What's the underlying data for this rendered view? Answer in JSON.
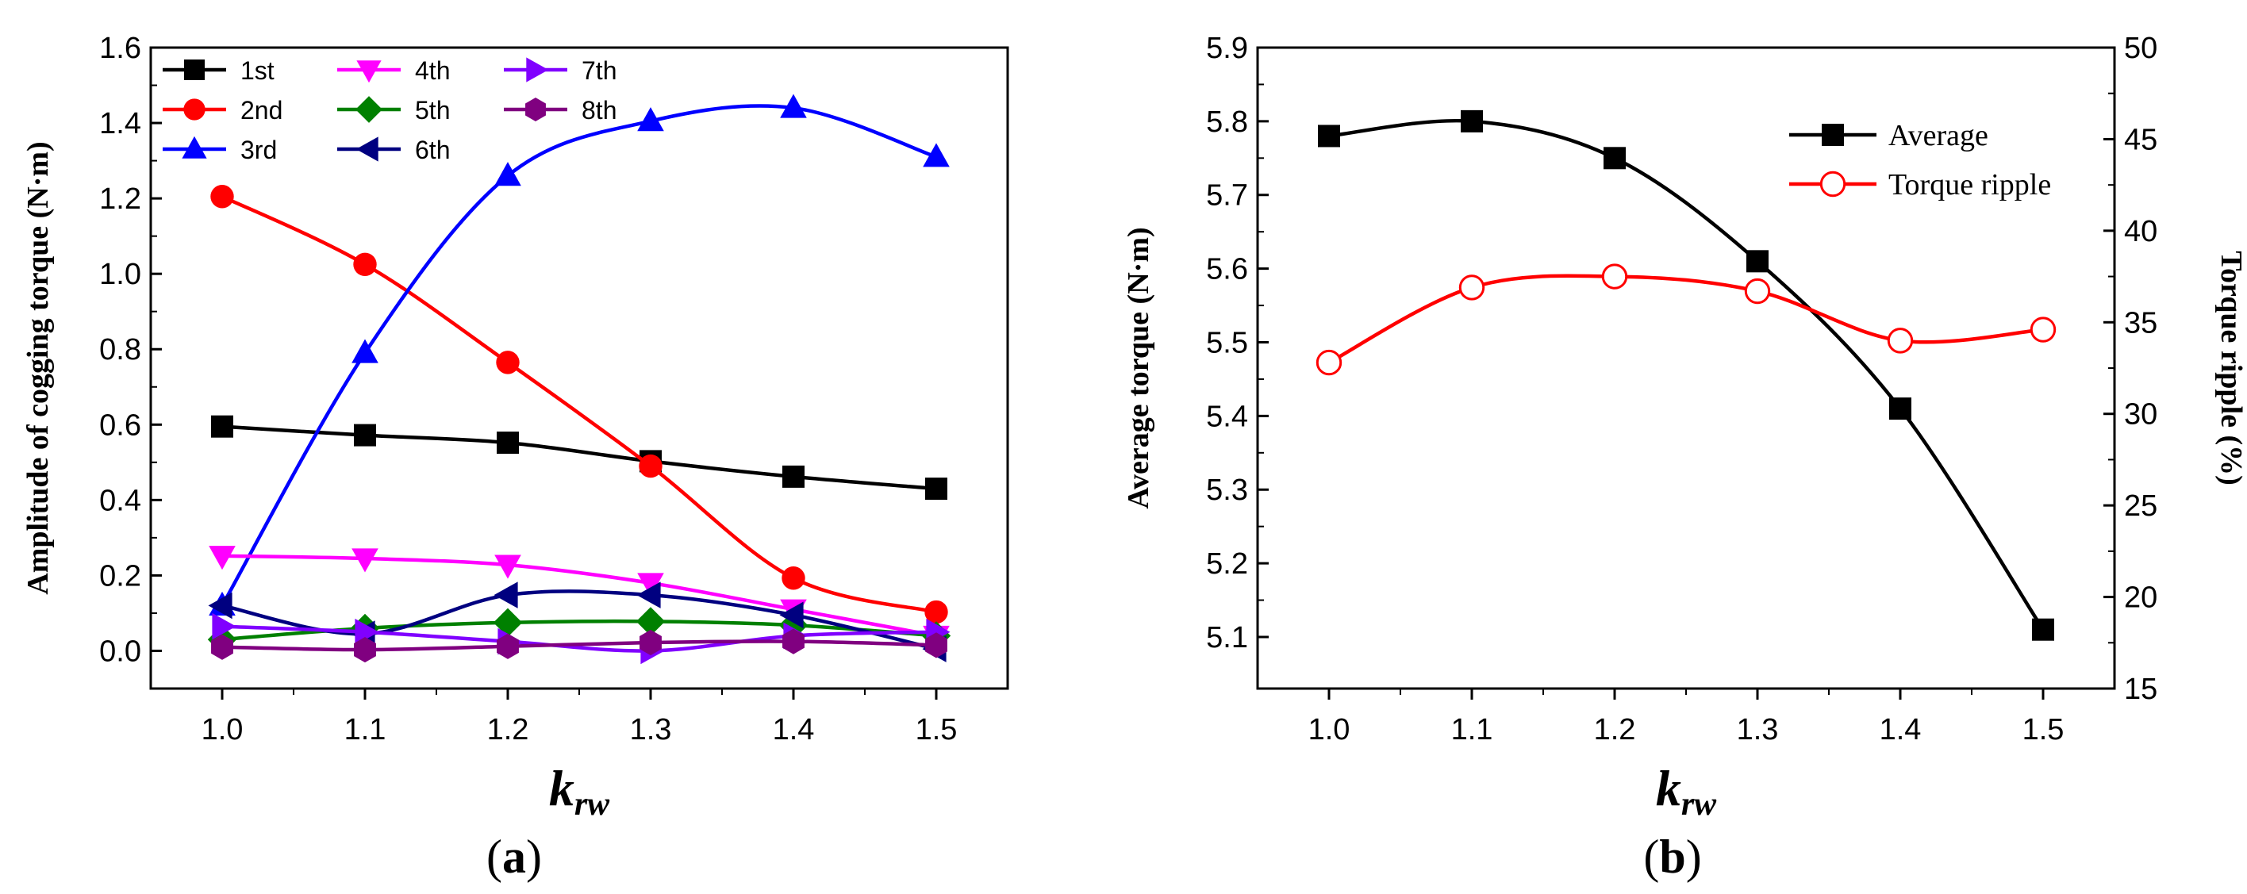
{
  "chart_data": [
    {
      "type": "line",
      "panel_label": "a",
      "xlabel_main": "k",
      "xlabel_sub": "rw",
      "ylabel": "Amplitude of cogging torque (N·m)",
      "x": [
        1.0,
        1.1,
        1.2,
        1.3,
        1.4,
        1.5
      ],
      "x_tick_labels": [
        "1.0",
        "1.1",
        "1.2",
        "1.3",
        "1.4",
        "1.5"
      ],
      "xlim": [
        0.95,
        1.55
      ],
      "ylim": [
        -0.1,
        1.6
      ],
      "y_ticks": [
        0.0,
        0.2,
        0.4,
        0.6,
        0.8,
        1.0,
        1.2,
        1.4,
        1.6
      ],
      "y_tick_labels": [
        "0.0",
        "0.2",
        "0.4",
        "0.6",
        "0.8",
        "1.0",
        "1.2",
        "1.4",
        "1.6"
      ],
      "legend_position": "top-left",
      "series": [
        {
          "name": "1st",
          "color": "#000000",
          "marker": "square",
          "values": [
            0.595,
            0.572,
            0.552,
            0.503,
            0.462,
            0.43
          ]
        },
        {
          "name": "2nd",
          "color": "#ff0000",
          "marker": "circle",
          "values": [
            1.205,
            1.025,
            0.765,
            0.49,
            0.193,
            0.103
          ]
        },
        {
          "name": "3rd",
          "color": "#0000ff",
          "marker": "triangle-up",
          "values": [
            0.12,
            0.79,
            1.26,
            1.405,
            1.44,
            1.31
          ]
        },
        {
          "name": "4th",
          "color": "#ff00ff",
          "marker": "triangle-down",
          "values": [
            0.252,
            0.245,
            0.228,
            0.18,
            0.11,
            0.04
          ]
        },
        {
          "name": "5th",
          "color": "#008000",
          "marker": "diamond",
          "values": [
            0.03,
            0.06,
            0.075,
            0.078,
            0.068,
            0.04
          ]
        },
        {
          "name": "6th",
          "color": "#000080",
          "marker": "triangle-left",
          "values": [
            0.12,
            0.045,
            0.148,
            0.148,
            0.095,
            0.005
          ]
        },
        {
          "name": "7th",
          "color": "#8000ff",
          "marker": "triangle-right",
          "values": [
            0.065,
            0.05,
            0.025,
            0.0,
            0.04,
            0.05
          ]
        },
        {
          "name": "8th",
          "color": "#800080",
          "marker": "hexagon",
          "values": [
            0.01,
            0.003,
            0.012,
            0.022,
            0.025,
            0.015
          ]
        }
      ]
    },
    {
      "type": "line",
      "panel_label": "b",
      "xlabel_main": "k",
      "xlabel_sub": "rw",
      "ylabel_left": "Average torque (N·m)",
      "ylabel_right": "Torque ripple (%)",
      "x": [
        1.0,
        1.1,
        1.2,
        1.3,
        1.4,
        1.5
      ],
      "x_tick_labels": [
        "1.0",
        "1.1",
        "1.2",
        "1.3",
        "1.4",
        "1.5"
      ],
      "xlim": [
        0.95,
        1.55
      ],
      "ylim_left": [
        5.03,
        5.9
      ],
      "y_left_ticks": [
        5.1,
        5.2,
        5.3,
        5.4,
        5.5,
        5.6,
        5.7,
        5.8,
        5.9
      ],
      "y_left_tick_labels": [
        "5.1",
        "5.2",
        "5.3",
        "5.4",
        "5.5",
        "5.6",
        "5.7",
        "5.8",
        "5.9"
      ],
      "ylim_right": [
        15,
        50
      ],
      "y_right_ticks": [
        15,
        20,
        25,
        30,
        35,
        40,
        45,
        50
      ],
      "y_right_tick_labels": [
        "15",
        "20",
        "25",
        "30",
        "35",
        "40",
        "45",
        "50"
      ],
      "legend_position": "top-right",
      "series": [
        {
          "name": "Average",
          "axis": "left",
          "color": "#000000",
          "marker": "square",
          "values": [
            5.78,
            5.8,
            5.75,
            5.61,
            5.41,
            5.11
          ]
        },
        {
          "name": "Torque ripple",
          "axis": "right",
          "color": "#ff0000",
          "marker": "open-circle",
          "values": [
            32.8,
            36.9,
            37.5,
            36.7,
            34.0,
            34.6
          ]
        }
      ]
    }
  ]
}
